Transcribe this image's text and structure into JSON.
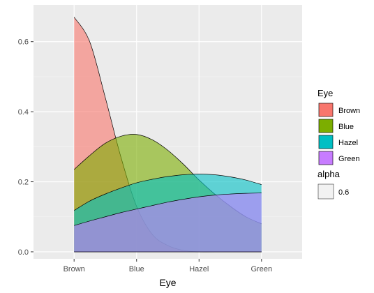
{
  "chart_data": {
    "type": "area",
    "title": "",
    "xlabel": "Eye",
    "ylabel": "",
    "categories": [
      "Brown",
      "Blue",
      "Hazel",
      "Green"
    ],
    "xlim": [
      0.35,
      4.65
    ],
    "ylim": [
      -0.02,
      0.705
    ],
    "y_ticks": [
      0.0,
      0.2,
      0.4,
      0.6
    ],
    "y_tick_labels": [
      "0.0",
      "0.2",
      "0.4",
      "0.6"
    ],
    "grid": true,
    "legend_position": "right",
    "fill_alpha": 0.6,
    "series": [
      {
        "name": "Brown",
        "color": "#F8766D",
        "x": [
          1,
          1.25,
          1.5,
          1.75,
          2,
          2.25,
          2.5,
          2.75,
          3,
          3.25,
          3.5,
          3.75,
          4
        ],
        "values": [
          0.67,
          0.6,
          0.44,
          0.27,
          0.13,
          0.05,
          0.018,
          0.004,
          0.0,
          0.0,
          0.0,
          0.0,
          0.0
        ]
      },
      {
        "name": "Blue",
        "color": "#7CAE00",
        "x": [
          1,
          1.25,
          1.5,
          1.75,
          2,
          2.25,
          2.5,
          2.75,
          3,
          3.25,
          3.5,
          3.75,
          4
        ],
        "values": [
          0.235,
          0.275,
          0.31,
          0.33,
          0.335,
          0.32,
          0.29,
          0.25,
          0.205,
          0.165,
          0.13,
          0.1,
          0.08
        ]
      },
      {
        "name": "Hazel",
        "color": "#00BFC4",
        "x": [
          1,
          1.25,
          1.5,
          1.75,
          2,
          2.25,
          2.5,
          2.75,
          3,
          3.25,
          3.5,
          3.75,
          4
        ],
        "values": [
          0.118,
          0.145,
          0.165,
          0.182,
          0.197,
          0.207,
          0.215,
          0.22,
          0.222,
          0.22,
          0.214,
          0.205,
          0.192
        ]
      },
      {
        "name": "Green",
        "color": "#C77CFF",
        "x": [
          1,
          1.25,
          1.5,
          1.75,
          2,
          2.25,
          2.5,
          2.75,
          3,
          3.25,
          3.5,
          3.75,
          4
        ],
        "values": [
          0.075,
          0.088,
          0.1,
          0.112,
          0.122,
          0.132,
          0.142,
          0.15,
          0.157,
          0.162,
          0.165,
          0.167,
          0.168
        ]
      }
    ],
    "legend": {
      "fill_title": "Eye",
      "fill_items": [
        "Brown",
        "Blue",
        "Hazel",
        "Green"
      ],
      "alpha_title": "alpha",
      "alpha_items": [
        "0.6"
      ]
    }
  }
}
